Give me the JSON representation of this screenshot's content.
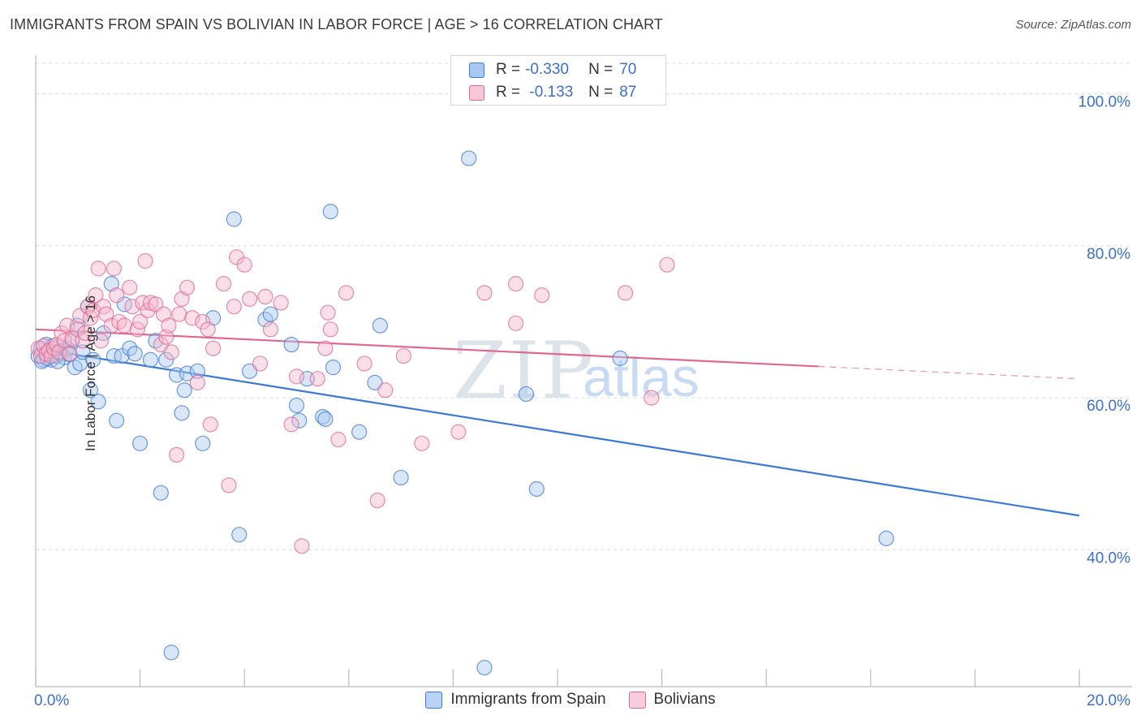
{
  "title": "IMMIGRANTS FROM SPAIN VS BOLIVIAN IN LABOR FORCE | AGE > 16 CORRELATION CHART",
  "source": "Source: ZipAtlas.com",
  "watermark": {
    "zip": "ZIP",
    "atlas": "atlas"
  },
  "legend": {
    "rows": [
      {
        "r_label": "R =",
        "r_value": "-0.330",
        "n_label": "N =",
        "n_value": "70"
      },
      {
        "r_label": "R =",
        "r_value": " -0.133",
        "n_label": "N =",
        "n_value": "87"
      }
    ]
  },
  "colors": {
    "blue": "#3b79d8",
    "blue_fill": "#a9c8f0",
    "pink": "#e0678f",
    "pink_fill": "#f6b8cc",
    "tick_text": "#3b6fd0"
  },
  "chart_data": {
    "type": "scatter",
    "title": "IMMIGRANTS FROM SPAIN VS BOLIVIAN IN LABOR FORCE | AGE > 16 CORRELATION CHART",
    "xlabel": "",
    "ylabel": "In Labor Force | Age > 16",
    "xlim": [
      0,
      20
    ],
    "ylim": [
      22,
      104
    ],
    "x_tick_labels": [
      "0.0%",
      "20.0%"
    ],
    "y_ticks": [
      40,
      60,
      80,
      100
    ],
    "y_tick_labels": [
      "40.0%",
      "60.0%",
      "80.0%",
      "100.0%"
    ],
    "series": [
      {
        "name": "Immigrants from Spain",
        "color": "#3b79d8",
        "trend": {
          "x": [
            0,
            20
          ],
          "y": [
            66.5,
            44.5
          ],
          "dashed_from": null
        },
        "points": [
          [
            0.05,
            65.5
          ],
          [
            0.1,
            66.5
          ],
          [
            0.15,
            65
          ],
          [
            0.2,
            67
          ],
          [
            0.25,
            66
          ],
          [
            0.3,
            65
          ],
          [
            0.35,
            66
          ],
          [
            0.4,
            65.5
          ],
          [
            0.45,
            66.2
          ],
          [
            0.5,
            65.8
          ],
          [
            0.55,
            65.3
          ],
          [
            0.6,
            66.5
          ],
          [
            0.65,
            65.7
          ],
          [
            0.7,
            67.5
          ],
          [
            0.75,
            64
          ],
          [
            0.8,
            69.5
          ],
          [
            0.85,
            64.5
          ],
          [
            0.9,
            66
          ],
          [
            1.0,
            72
          ],
          [
            1.05,
            61
          ],
          [
            1.1,
            65
          ],
          [
            1.2,
            59.5
          ],
          [
            1.3,
            68.5
          ],
          [
            1.45,
            75
          ],
          [
            1.5,
            65.5
          ],
          [
            1.55,
            57
          ],
          [
            1.65,
            65.5
          ],
          [
            1.7,
            72.3
          ],
          [
            1.8,
            66.5
          ],
          [
            1.9,
            65.8
          ],
          [
            2.0,
            54
          ],
          [
            2.2,
            65
          ],
          [
            2.3,
            67.5
          ],
          [
            2.4,
            47.5
          ],
          [
            2.5,
            65
          ],
          [
            2.6,
            26.5
          ],
          [
            2.7,
            63
          ],
          [
            2.8,
            58
          ],
          [
            2.85,
            61
          ],
          [
            2.9,
            63.2
          ],
          [
            3.1,
            63.5
          ],
          [
            3.2,
            54
          ],
          [
            3.4,
            70.5
          ],
          [
            3.8,
            83.5
          ],
          [
            3.9,
            42
          ],
          [
            4.1,
            63.5
          ],
          [
            4.4,
            70.3
          ],
          [
            4.5,
            71
          ],
          [
            4.9,
            67
          ],
          [
            5.0,
            59
          ],
          [
            5.05,
            57
          ],
          [
            5.2,
            62.5
          ],
          [
            5.5,
            57.5
          ],
          [
            5.55,
            57.2
          ],
          [
            5.7,
            64
          ],
          [
            5.65,
            84.5
          ],
          [
            6.2,
            55.5
          ],
          [
            6.5,
            62
          ],
          [
            6.6,
            69.5
          ],
          [
            7.0,
            49.5
          ],
          [
            8.3,
            91.5
          ],
          [
            8.6,
            24.5
          ],
          [
            9.4,
            60.5
          ],
          [
            9.6,
            48
          ],
          [
            11.2,
            65.2
          ],
          [
            16.3,
            41.5
          ],
          [
            0.12,
            64.8
          ],
          [
            0.22,
            65.2
          ],
          [
            0.32,
            66.8
          ],
          [
            0.42,
            64.8
          ]
        ]
      },
      {
        "name": "Bolivians",
        "color": "#e0678f",
        "trend": {
          "x": [
            0,
            20
          ],
          "y": [
            69,
            62.5
          ],
          "dashed_from": 15
        },
        "points": [
          [
            0.05,
            66.5
          ],
          [
            0.1,
            65.5
          ],
          [
            0.15,
            66.8
          ],
          [
            0.2,
            65.8
          ],
          [
            0.25,
            66.2
          ],
          [
            0.3,
            65.5
          ],
          [
            0.35,
            66.5
          ],
          [
            0.4,
            67
          ],
          [
            0.45,
            66
          ],
          [
            0.5,
            68.5
          ],
          [
            0.55,
            67.5
          ],
          [
            0.6,
            69.5
          ],
          [
            0.65,
            65.8
          ],
          [
            0.7,
            67.8
          ],
          [
            0.8,
            69
          ],
          [
            0.85,
            70.8
          ],
          [
            0.9,
            67.5
          ],
          [
            0.95,
            68.5
          ],
          [
            1.0,
            72
          ],
          [
            1.05,
            70.5
          ],
          [
            1.1,
            71.5
          ],
          [
            1.15,
            73.5
          ],
          [
            1.2,
            77
          ],
          [
            1.25,
            67.5
          ],
          [
            1.3,
            72
          ],
          [
            1.35,
            71
          ],
          [
            1.45,
            69.5
          ],
          [
            1.5,
            77
          ],
          [
            1.55,
            73.5
          ],
          [
            1.6,
            70
          ],
          [
            1.7,
            69.5
          ],
          [
            1.8,
            74.5
          ],
          [
            1.85,
            72
          ],
          [
            1.95,
            69
          ],
          [
            2.0,
            70
          ],
          [
            2.05,
            72.5
          ],
          [
            2.1,
            78
          ],
          [
            2.15,
            71.5
          ],
          [
            2.2,
            72.5
          ],
          [
            2.3,
            72.3
          ],
          [
            2.4,
            67
          ],
          [
            2.45,
            71
          ],
          [
            2.5,
            68
          ],
          [
            2.55,
            69.5
          ],
          [
            2.6,
            66
          ],
          [
            2.7,
            52.5
          ],
          [
            2.75,
            71
          ],
          [
            2.8,
            73
          ],
          [
            2.9,
            74.5
          ],
          [
            3.0,
            70.5
          ],
          [
            3.1,
            62
          ],
          [
            3.2,
            70
          ],
          [
            3.3,
            69
          ],
          [
            3.35,
            56.5
          ],
          [
            3.4,
            66.5
          ],
          [
            3.6,
            75
          ],
          [
            3.7,
            48.5
          ],
          [
            3.8,
            72
          ],
          [
            3.85,
            78.5
          ],
          [
            4.0,
            77.5
          ],
          [
            4.1,
            73
          ],
          [
            4.3,
            64.5
          ],
          [
            4.4,
            73.3
          ],
          [
            4.5,
            69
          ],
          [
            4.7,
            72.5
          ],
          [
            4.9,
            56.5
          ],
          [
            5.0,
            62.8
          ],
          [
            5.1,
            40.5
          ],
          [
            5.4,
            62.5
          ],
          [
            5.55,
            66.5
          ],
          [
            5.6,
            71.2
          ],
          [
            5.65,
            69
          ],
          [
            5.8,
            54.5
          ],
          [
            5.95,
            73.8
          ],
          [
            6.3,
            64.5
          ],
          [
            6.55,
            46.5
          ],
          [
            6.7,
            61
          ],
          [
            7.05,
            65.5
          ],
          [
            7.4,
            54
          ],
          [
            8.1,
            55.5
          ],
          [
            8.6,
            73.8
          ],
          [
            9.2,
            69.8
          ],
          [
            9.2,
            75
          ],
          [
            9.7,
            73.5
          ],
          [
            11.3,
            73.8
          ],
          [
            11.8,
            60
          ],
          [
            12.1,
            77.5
          ]
        ]
      }
    ]
  },
  "bottom_legend": {
    "items": [
      {
        "label": "Immigrants from Spain"
      },
      {
        "label": "Bolivians"
      }
    ]
  }
}
